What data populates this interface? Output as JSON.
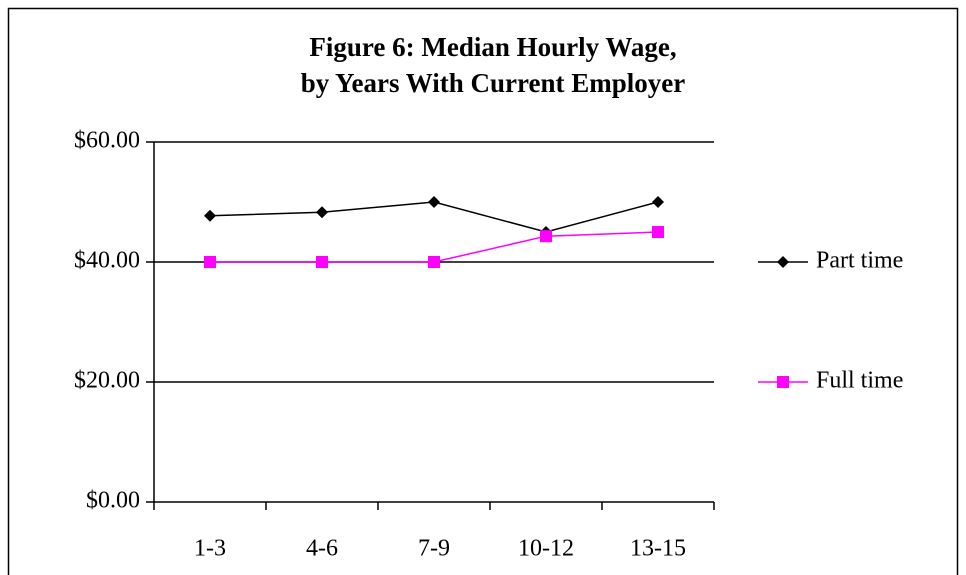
{
  "chart_data": {
    "type": "line",
    "title": [
      "Figure 6: Median Hourly Wage,",
      "by Years With Current Employer"
    ],
    "categories": [
      "1-3",
      "4-6",
      "7-9",
      "10-12",
      "13-15"
    ],
    "series": [
      {
        "name": "Part time",
        "color": "#000000",
        "marker": "diamond",
        "values": [
          47.7,
          48.3,
          50,
          45,
          50
        ]
      },
      {
        "name": "Full time",
        "color": "#ff00ff",
        "marker": "square",
        "values": [
          40,
          40,
          40,
          44.3,
          45
        ]
      }
    ],
    "ylim": [
      0,
      60
    ],
    "yticks": [
      {
        "value": 0,
        "label": "$0.00"
      },
      {
        "value": 20,
        "label": "$20.00"
      },
      {
        "value": 40,
        "label": "$40.00"
      },
      {
        "value": 60,
        "label": "$60.00"
      }
    ],
    "grid": true,
    "legend": "right"
  }
}
